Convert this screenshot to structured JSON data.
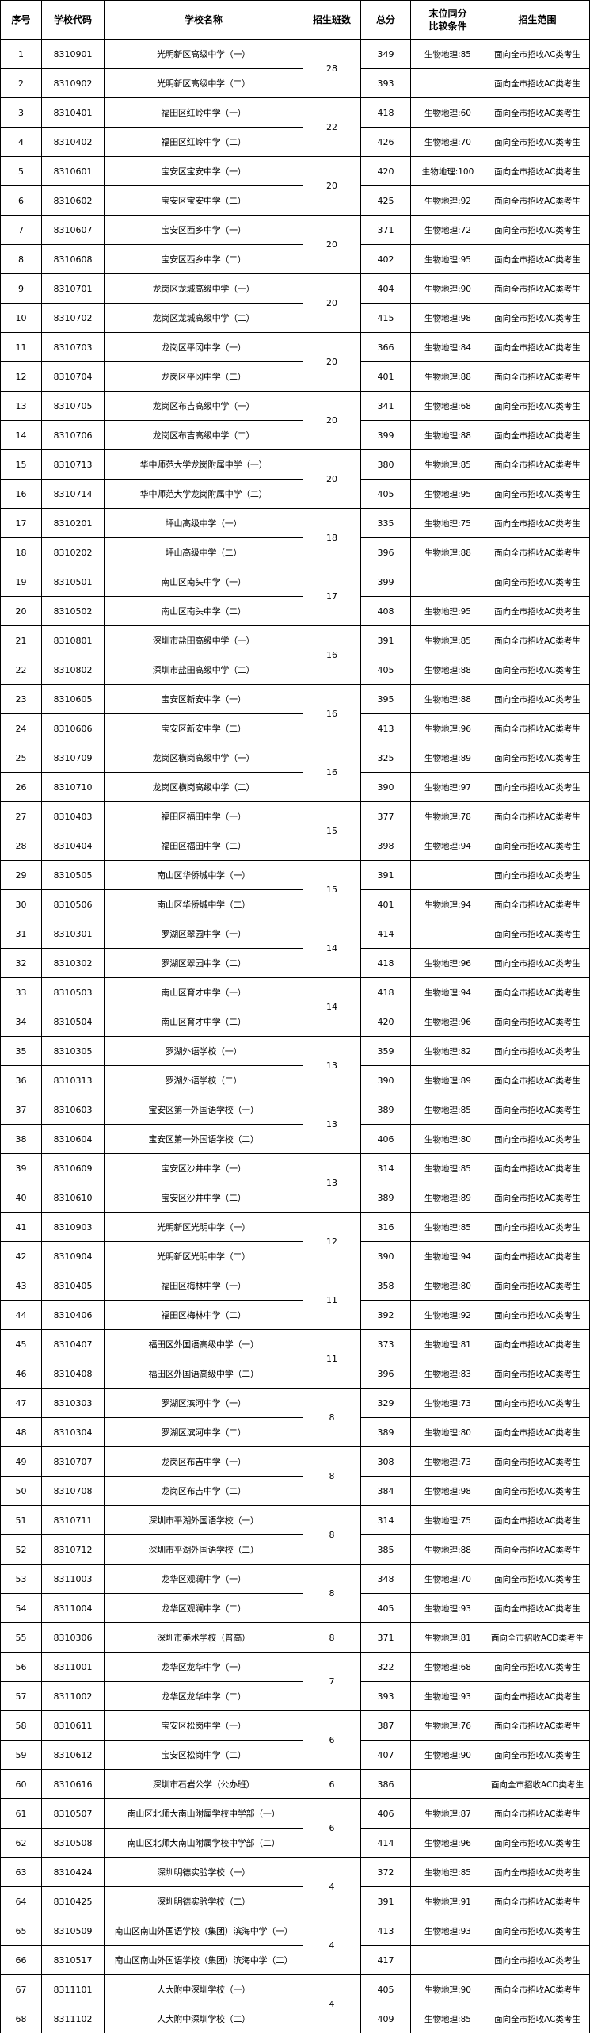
{
  "header": {
    "no": "序号",
    "code": "学校代码",
    "name": "学校名称",
    "classes": "招生班数",
    "score": "总分",
    "condition": [
      "末位同分",
      "比较条件"
    ],
    "scope": "招生范围"
  },
  "rows": [
    {
      "no": 1,
      "code": "8310901",
      "name": "光明新区高级中学（一）",
      "classes": 28,
      "score": 349,
      "condition": "生物地理:85",
      "scope": "面向全市招收AC类考生"
    },
    {
      "no": 2,
      "code": "8310902",
      "name": "光明新区高级中学（二）",
      "score": 393,
      "scope": "面向全市招收AC类考生"
    },
    {
      "no": 3,
      "code": "8310401",
      "name": "福田区红岭中学（一）",
      "classes": 22,
      "score": 418,
      "condition": "生物地理:60",
      "scope": "面向全市招收AC类考生"
    },
    {
      "no": 4,
      "code": "8310402",
      "name": "福田区红岭中学（二）",
      "score": 426,
      "condition": "生物地理:70",
      "scope": "面向全市招收AC类考生"
    },
    {
      "no": 5,
      "code": "8310601",
      "name": "宝安区宝安中学（一）",
      "classes": 20,
      "score": 420,
      "condition": "生物地理:100",
      "scope": "面向全市招收AC类考生"
    },
    {
      "no": 6,
      "code": "8310602",
      "name": "宝安区宝安中学（二）",
      "score": 425,
      "condition": "生物地理:92",
      "scope": "面向全市招收AC类考生"
    },
    {
      "no": 7,
      "code": "8310607",
      "name": "宝安区西乡中学（一）",
      "classes": 20,
      "score": 371,
      "condition": "生物地理:72",
      "scope": "面向全市招收AC类考生"
    },
    {
      "no": 8,
      "code": "8310608",
      "name": "宝安区西乡中学（二）",
      "score": 402,
      "condition": "生物地理:95",
      "scope": "面向全市招收AC类考生"
    },
    {
      "no": 9,
      "code": "8310701",
      "name": "龙岗区龙城高级中学（一）",
      "classes": 20,
      "score": 404,
      "condition": "生物地理:90",
      "scope": "面向全市招收AC类考生"
    },
    {
      "no": 10,
      "code": "8310702",
      "name": "龙岗区龙城高级中学（二）",
      "score": 415,
      "condition": "生物地理:98",
      "scope": "面向全市招收AC类考生"
    },
    {
      "no": 11,
      "code": "8310703",
      "name": "龙岗区平冈中学（一）",
      "classes": 20,
      "score": 366,
      "condition": "生物地理:84",
      "scope": "面向全市招收AC类考生"
    },
    {
      "no": 12,
      "code": "8310704",
      "name": "龙岗区平冈中学（二）",
      "score": 401,
      "condition": "生物地理:88",
      "scope": "面向全市招收AC类考生"
    },
    {
      "no": 13,
      "code": "8310705",
      "name": "龙岗区布吉高级中学（一）",
      "classes": 20,
      "score": 341,
      "condition": "生物地理:68",
      "scope": "面向全市招收AC类考生"
    },
    {
      "no": 14,
      "code": "8310706",
      "name": "龙岗区布吉高级中学（二）",
      "score": 399,
      "condition": "生物地理:88",
      "scope": "面向全市招收AC类考生"
    },
    {
      "no": 15,
      "code": "8310713",
      "name": "华中师范大学龙岗附属中学（一）",
      "classes": 20,
      "score": 380,
      "condition": "生物地理:85",
      "scope": "面向全市招收AC类考生"
    },
    {
      "no": 16,
      "code": "8310714",
      "name": "华中师范大学龙岗附属中学（二）",
      "score": 405,
      "condition": "生物地理:95",
      "scope": "面向全市招收AC类考生"
    },
    {
      "no": 17,
      "code": "8310201",
      "name": "坪山高级中学（一）",
      "classes": 18,
      "score": 335,
      "condition": "生物地理:75",
      "scope": "面向全市招收AC类考生"
    },
    {
      "no": 18,
      "code": "8310202",
      "name": "坪山高级中学（二）",
      "score": 396,
      "condition": "生物地理:88",
      "scope": "面向全市招收AC类考生"
    },
    {
      "no": 19,
      "code": "8310501",
      "name": "南山区南头中学（一）",
      "classes": 17,
      "score": 399,
      "scope": "面向全市招收AC类考生"
    },
    {
      "no": 20,
      "code": "8310502",
      "name": "南山区南头中学（二）",
      "score": 408,
      "condition": "生物地理:95",
      "scope": "面向全市招收AC类考生"
    },
    {
      "no": 21,
      "code": "8310801",
      "name": "深圳市盐田高级中学（一）",
      "classes": 16,
      "score": 391,
      "condition": "生物地理:85",
      "scope": "面向全市招收AC类考生"
    },
    {
      "no": 22,
      "code": "8310802",
      "name": "深圳市盐田高级中学（二）",
      "score": 405,
      "condition": "生物地理:88",
      "scope": "面向全市招收AC类考生"
    },
    {
      "no": 23,
      "code": "8310605",
      "name": "宝安区新安中学（一）",
      "classes": 16,
      "score": 395,
      "condition": "生物地理:88",
      "scope": "面向全市招收AC类考生"
    },
    {
      "no": 24,
      "code": "8310606",
      "name": "宝安区新安中学（二）",
      "score": 413,
      "condition": "生物地理:96",
      "scope": "面向全市招收AC类考生"
    },
    {
      "no": 25,
      "code": "8310709",
      "name": "龙岗区横岗高级中学（一）",
      "classes": 16,
      "score": 325,
      "condition": "生物地理:89",
      "scope": "面向全市招收AC类考生"
    },
    {
      "no": 26,
      "code": "8310710",
      "name": "龙岗区横岗高级中学（二）",
      "score": 390,
      "condition": "生物地理:97",
      "scope": "面向全市招收AC类考生"
    },
    {
      "no": 27,
      "code": "8310403",
      "name": "福田区福田中学（一）",
      "classes": 15,
      "score": 377,
      "condition": "生物地理:78",
      "scope": "面向全市招收AC类考生"
    },
    {
      "no": 28,
      "code": "8310404",
      "name": "福田区福田中学（二）",
      "score": 398,
      "condition": "生物地理:94",
      "scope": "面向全市招收AC类考生"
    },
    {
      "no": 29,
      "code": "8310505",
      "name": "南山区华侨城中学（一）",
      "classes": 15,
      "score": 391,
      "scope": "面向全市招收AC类考生"
    },
    {
      "no": 30,
      "code": "8310506",
      "name": "南山区华侨城中学（二）",
      "score": 401,
      "condition": "生物地理:94",
      "scope": "面向全市招收AC类考生"
    },
    {
      "no": 31,
      "code": "8310301",
      "name": "罗湖区翠园中学（一）",
      "classes": 14,
      "score": 414,
      "scope": "面向全市招收AC类考生"
    },
    {
      "no": 32,
      "code": "8310302",
      "name": "罗湖区翠园中学（二）",
      "score": 418,
      "condition": "生物地理:96",
      "scope": "面向全市招收AC类考生"
    },
    {
      "no": 33,
      "code": "8310503",
      "name": "南山区育才中学（一）",
      "classes": 14,
      "score": 418,
      "condition": "生物地理:94",
      "scope": "面向全市招收AC类考生"
    },
    {
      "no": 34,
      "code": "8310504",
      "name": "南山区育才中学（二）",
      "score": 420,
      "condition": "生物地理:96",
      "scope": "面向全市招收AC类考生"
    },
    {
      "no": 35,
      "code": "8310305",
      "name": "罗湖外语学校（一）",
      "classes": 13,
      "score": 359,
      "condition": "生物地理:82",
      "scope": "面向全市招收AC类考生"
    },
    {
      "no": 36,
      "code": "8310313",
      "name": "罗湖外语学校（二）",
      "score": 390,
      "condition": "生物地理:89",
      "scope": "面向全市招收AC类考生"
    },
    {
      "no": 37,
      "code": "8310603",
      "name": "宝安区第一外国语学校（一）",
      "classes": 13,
      "score": 389,
      "condition": "生物地理:85",
      "scope": "面向全市招收AC类考生"
    },
    {
      "no": 38,
      "code": "8310604",
      "name": "宝安区第一外国语学校（二）",
      "score": 406,
      "condition": "生物地理:80",
      "scope": "面向全市招收AC类考生"
    },
    {
      "no": 39,
      "code": "8310609",
      "name": "宝安区沙井中学（一）",
      "classes": 13,
      "score": 314,
      "condition": "生物地理:85",
      "scope": "面向全市招收AC类考生"
    },
    {
      "no": 40,
      "code": "8310610",
      "name": "宝安区沙井中学（二）",
      "score": 389,
      "condition": "生物地理:89",
      "scope": "面向全市招收AC类考生"
    },
    {
      "no": 41,
      "code": "8310903",
      "name": "光明新区光明中学（一）",
      "classes": 12,
      "score": 316,
      "condition": "生物地理:85",
      "scope": "面向全市招收AC类考生"
    },
    {
      "no": 42,
      "code": "8310904",
      "name": "光明新区光明中学（二）",
      "score": 390,
      "condition": "生物地理:94",
      "scope": "面向全市招收AC类考生"
    },
    {
      "no": 43,
      "code": "8310405",
      "name": "福田区梅林中学（一）",
      "classes": 11,
      "score": 358,
      "condition": "生物地理:80",
      "scope": "面向全市招收AC类考生"
    },
    {
      "no": 44,
      "code": "8310406",
      "name": "福田区梅林中学（二）",
      "score": 392,
      "condition": "生物地理:92",
      "scope": "面向全市招收AC类考生"
    },
    {
      "no": 45,
      "code": "8310407",
      "name": "福田区外国语高级中学（一）",
      "classes": 11,
      "score": 373,
      "condition": "生物地理:81",
      "scope": "面向全市招收AC类考生"
    },
    {
      "no": 46,
      "code": "8310408",
      "name": "福田区外国语高级中学（二）",
      "score": 396,
      "condition": "生物地理:83",
      "scope": "面向全市招收AC类考生"
    },
    {
      "no": 47,
      "code": "8310303",
      "name": "罗湖区滨河中学（一）",
      "classes": 8,
      "score": 329,
      "condition": "生物地理:73",
      "scope": "面向全市招收AC类考生"
    },
    {
      "no": 48,
      "code": "8310304",
      "name": "罗湖区滨河中学（二）",
      "score": 389,
      "condition": "生物地理:80",
      "scope": "面向全市招收AC类考生"
    },
    {
      "no": 49,
      "code": "8310707",
      "name": "龙岗区布吉中学（一）",
      "classes": 8,
      "score": 308,
      "condition": "生物地理:73",
      "scope": "面向全市招收AC类考生"
    },
    {
      "no": 50,
      "code": "8310708",
      "name": "龙岗区布吉中学（二）",
      "score": 384,
      "condition": "生物地理:98",
      "scope": "面向全市招收AC类考生"
    },
    {
      "no": 51,
      "code": "8310711",
      "name": "深圳市平湖外国语学校（一）",
      "classes": 8,
      "score": 314,
      "condition": "生物地理:75",
      "scope": "面向全市招收AC类考生"
    },
    {
      "no": 52,
      "code": "8310712",
      "name": "深圳市平湖外国语学校（二）",
      "score": 385,
      "condition": "生物地理:88",
      "scope": "面向全市招收AC类考生"
    },
    {
      "no": 53,
      "code": "8311003",
      "name": "龙华区观澜中学（一）",
      "classes": 8,
      "score": 348,
      "condition": "生物地理:70",
      "scope": "面向全市招收AC类考生"
    },
    {
      "no": 54,
      "code": "8311004",
      "name": "龙华区观澜中学（二）",
      "score": 405,
      "condition": "生物地理:93",
      "scope": "面向全市招收AC类考生"
    },
    {
      "no": 55,
      "code": "8310306",
      "name": "深圳市美术学校（普高）",
      "classes": 8,
      "score": 371,
      "condition": "生物地理:81",
      "scope": "面向全市招收ACD类考生"
    },
    {
      "no": 56,
      "code": "8311001",
      "name": "龙华区龙华中学（一）",
      "classes": 7,
      "score": 322,
      "condition": "生物地理:68",
      "scope": "面向全市招收AC类考生"
    },
    {
      "no": 57,
      "code": "8311002",
      "name": "龙华区龙华中学（二）",
      "score": 393,
      "condition": "生物地理:93",
      "scope": "面向全市招收AC类考生"
    },
    {
      "no": 58,
      "code": "8310611",
      "name": "宝安区松岗中学（一）",
      "classes": 6,
      "score": 387,
      "condition": "生物地理:76",
      "scope": "面向全市招收AC类考生"
    },
    {
      "no": 59,
      "code": "8310612",
      "name": "宝安区松岗中学（二）",
      "score": 407,
      "condition": "生物地理:90",
      "scope": "面向全市招收AC类考生"
    },
    {
      "no": 60,
      "code": "8310616",
      "name": "深圳市石岩公学（公办班）",
      "classes": 6,
      "score": 386,
      "scope": "面向全市招收ACD类考生"
    },
    {
      "no": 61,
      "code": "8310507",
      "name": "南山区北师大南山附属学校中学部（一）",
      "classes": 6,
      "score": 406,
      "condition": "生物地理:87",
      "scope": "面向全市招收AC类考生"
    },
    {
      "no": 62,
      "code": "8310508",
      "name": "南山区北师大南山附属学校中学部（二）",
      "score": 414,
      "condition": "生物地理:96",
      "scope": "面向全市招收AC类考生"
    },
    {
      "no": 63,
      "code": "8310424",
      "name": "深圳明德实验学校（一）",
      "classes": 4,
      "score": 372,
      "condition": "生物地理:85",
      "scope": "面向全市招收AC类考生"
    },
    {
      "no": 64,
      "code": "8310425",
      "name": "深圳明德实验学校（二）",
      "score": 391,
      "condition": "生物地理:91",
      "scope": "面向全市招收AC类考生"
    },
    {
      "no": 65,
      "code": "8310509",
      "name": "南山区南山外国语学校（集团）滨海中学（一）",
      "classes": 4,
      "score": 413,
      "condition": "生物地理:93",
      "scope": "面向全市招收AC类考生"
    },
    {
      "no": 66,
      "code": "8310517",
      "name": "南山区南山外国语学校（集团）滨海中学（二）",
      "score": 417,
      "scope": "面向全市招收AC类考生"
    },
    {
      "no": 67,
      "code": "8311101",
      "name": "人大附中深圳学校（一）",
      "classes": 4,
      "score": 405,
      "condition": "生物地理:90",
      "scope": "面向全市招收AC类考生"
    },
    {
      "no": 68,
      "code": "8311102",
      "name": "人大附中深圳学校（二）",
      "score": 409,
      "condition": "生物地理:85",
      "scope": "面向全市招收AC类考生"
    }
  ]
}
